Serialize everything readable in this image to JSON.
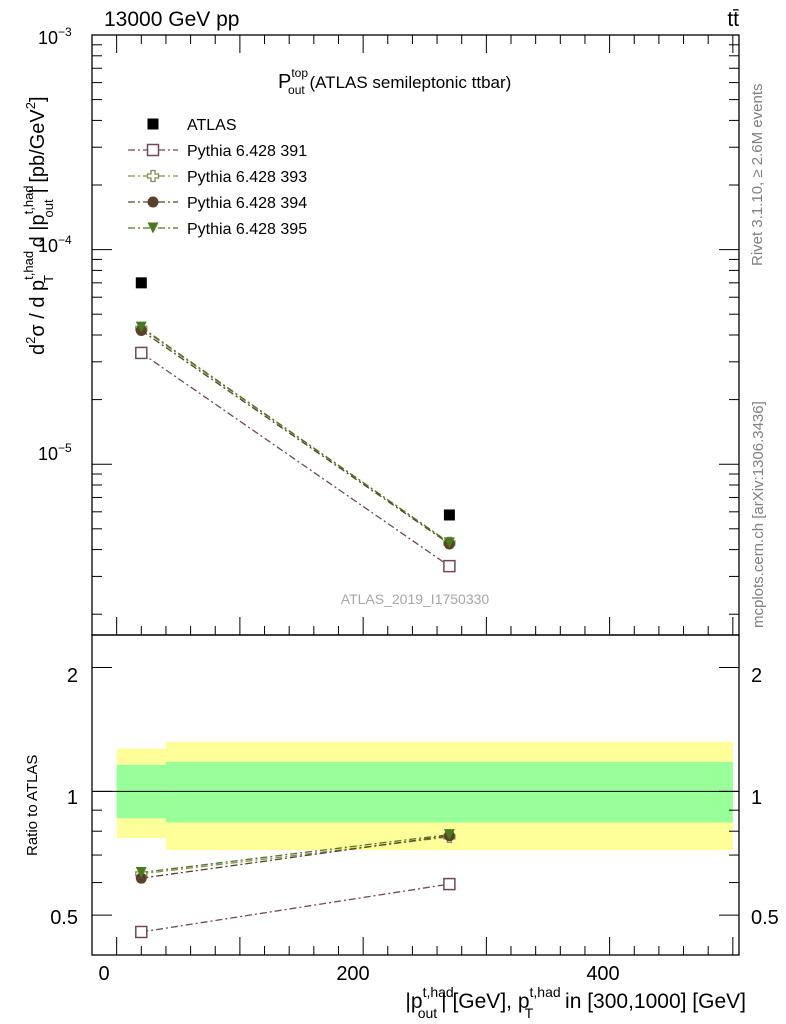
{
  "header": {
    "energy": "13000 GeV pp",
    "process": "tt̄"
  },
  "side_labels": {
    "rivet": "Rivet 3.1.10, ≥ 2.6M events",
    "mcplots": "mcplots.cern.ch [arXiv:1306.3436]"
  },
  "title": {
    "main": "P",
    "sup": "top",
    "sub": "out",
    "rest": " (ATLAS semileptonic ttbar)"
  },
  "analysis_id": "ATLAS_2019_I1750330",
  "upper_ylabel": {
    "p1": "d",
    "s1": "2",
    "p2": "σ / d p",
    "s2": "t,had",
    "b2": "T",
    "p3": " d |p",
    "s3": "t,had",
    "b3": "out",
    "p4": "| [pb/GeV",
    "s4": "2",
    "p5": "]"
  },
  "lower_ylabel": "Ratio to ATLAS",
  "xlabel": {
    "p1": "|p",
    "s1": "t,had",
    "b1": "out",
    "p2": "| [GeV], p",
    "s2": "t,had",
    "b2": "T",
    "p3": " in [300,1000] [GeV]"
  },
  "upper_ticks": [
    {
      "base": "10",
      "exp": "−3"
    },
    {
      "base": "10",
      "exp": "−4"
    },
    {
      "base": "10",
      "exp": "−5"
    }
  ],
  "ratio_ticks": [
    "2",
    "1",
    "0.5"
  ],
  "x_ticks": [
    "0",
    "200",
    "400"
  ],
  "legend": [
    {
      "label": "ATLAS",
      "color": "#000000",
      "marker": "square-filled"
    },
    {
      "label": "Pythia 6.428 391",
      "color": "#70485a",
      "marker": "square-open"
    },
    {
      "label": "Pythia 6.428 393",
      "color": "#8a8a55",
      "marker": "cross-open"
    },
    {
      "label": "Pythia 6.428 394",
      "color": "#5a4028",
      "marker": "circle-filled"
    },
    {
      "label": "Pythia 6.428 395",
      "color": "#4a7a1e",
      "marker": "triangle-down-filled"
    }
  ],
  "chart_data": {
    "type": "scatter",
    "x_range": [
      -20,
      505
    ],
    "upper": {
      "y_scale": "log",
      "y_range": [
        1.6e-06,
        0.001
      ],
      "data": {
        "name": "ATLAS",
        "x": [
          20,
          270
        ],
        "y": [
          7e-05,
          5.8e-06
        ]
      },
      "series": [
        {
          "name": "Pythia 6.428 391",
          "x": [
            20,
            270
          ],
          "y": [
            3.3e-05,
            3.35e-06
          ]
        },
        {
          "name": "Pythia 6.428 393",
          "x": [
            20,
            270
          ],
          "y": [
            4.3e-05,
            4.3e-06
          ]
        },
        {
          "name": "Pythia 6.428 394",
          "x": [
            20,
            270
          ],
          "y": [
            4.2e-05,
            4.25e-06
          ]
        },
        {
          "name": "Pythia 6.428 395",
          "x": [
            20,
            270
          ],
          "y": [
            4.35e-05,
            4.3e-06
          ]
        }
      ]
    },
    "ratio": {
      "y_scale": "log",
      "y_range": [
        0.4,
        2.4
      ],
      "uncertainty_bins": [
        {
          "x0": 0,
          "x1": 40,
          "inner": [
            0.86,
            1.16
          ],
          "outer": [
            0.77,
            1.27
          ]
        },
        {
          "x0": 40,
          "x1": 500,
          "inner": [
            0.84,
            1.18
          ],
          "outer": [
            0.72,
            1.32
          ]
        }
      ],
      "series": [
        {
          "name": "Pythia 6.428 391",
          "x": [
            20,
            270
          ],
          "y": [
            0.455,
            0.595
          ]
        },
        {
          "name": "Pythia 6.428 393",
          "x": [
            20,
            270
          ],
          "y": [
            0.63,
            0.775
          ]
        },
        {
          "name": "Pythia 6.428 394",
          "x": [
            20,
            270
          ],
          "y": [
            0.615,
            0.78
          ]
        },
        {
          "name": "Pythia 6.428 395",
          "x": [
            20,
            270
          ],
          "y": [
            0.635,
            0.785
          ]
        }
      ]
    }
  }
}
